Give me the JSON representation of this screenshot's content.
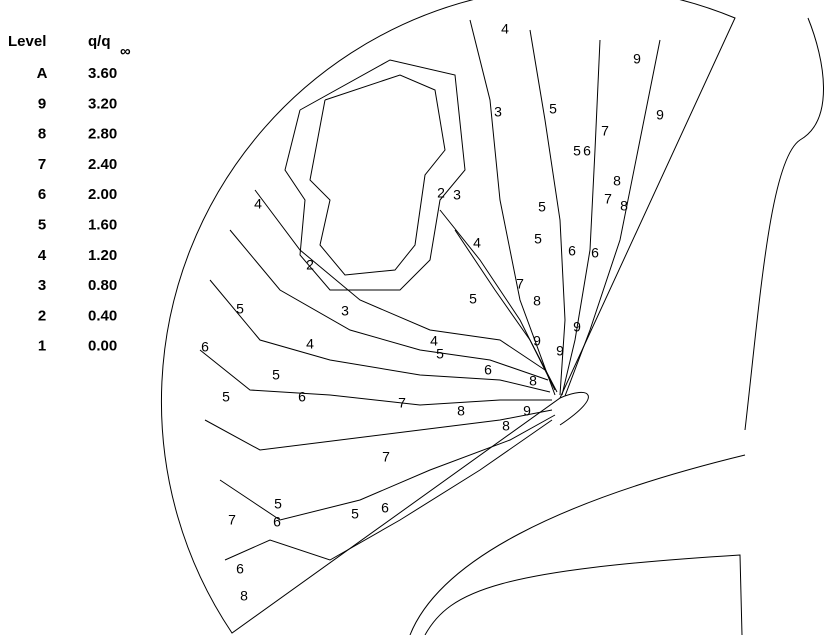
{
  "legend": {
    "headers": [
      "Level",
      "q/q"
    ],
    "subscript": "∞",
    "rows": [
      [
        "A",
        "3.60"
      ],
      [
        "9",
        "3.20"
      ],
      [
        "8",
        "2.80"
      ],
      [
        "7",
        "2.40"
      ],
      [
        "6",
        "2.00"
      ],
      [
        "5",
        "1.60"
      ],
      [
        "4",
        "1.20"
      ],
      [
        "3",
        "0.80"
      ],
      [
        "2",
        "0.40"
      ],
      [
        "1",
        "0.00"
      ]
    ]
  },
  "contour_labels": [
    "4",
    "5",
    "3",
    "9",
    "9",
    "7",
    "5",
    "6",
    "8",
    "7",
    "8",
    "2",
    "3",
    "4",
    "5",
    "5",
    "6",
    "6",
    "4",
    "2",
    "3",
    "5",
    "6",
    "4",
    "5",
    "7",
    "8",
    "9",
    "4",
    "5",
    "9",
    "9",
    "5",
    "6",
    "5",
    "7",
    "8",
    "6",
    "8",
    "9",
    "8",
    "7",
    "5",
    "6",
    "5",
    "6",
    "7",
    "6",
    "8"
  ]
}
